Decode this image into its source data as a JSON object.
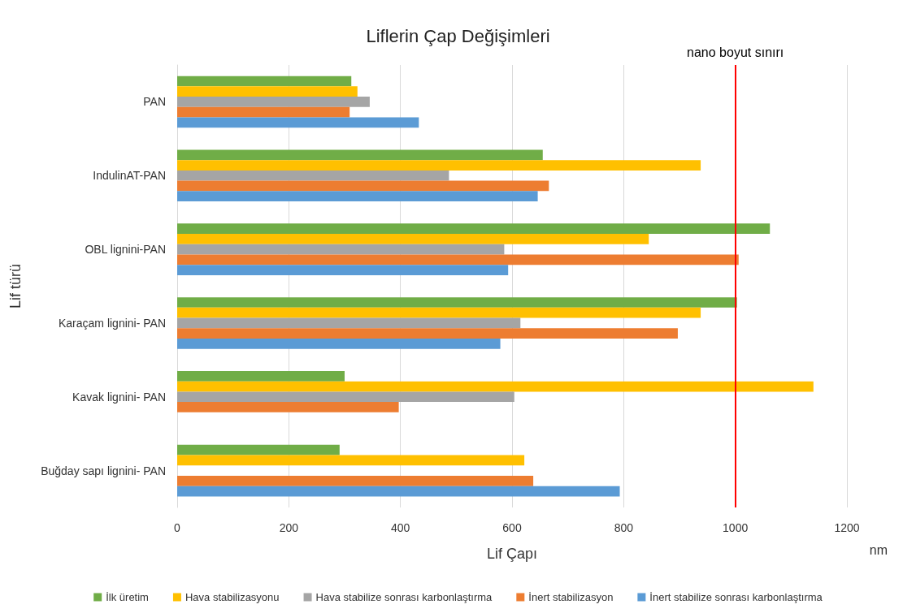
{
  "chart_data": {
    "type": "bar",
    "orientation": "horizontal",
    "title": "Liflerin Çap Değişimleri",
    "xlabel": "Lif Çapı",
    "ylabel": "Lif türü",
    "annotations": [
      "nm"
    ],
    "categories": [
      "PAN",
      "IndulinAT-PAN",
      "OBL lignini-PAN",
      "Karaçam lignini- PAN",
      "Kavak lignini- PAN",
      "Buğday sapı lignini- PAN"
    ],
    "series": [
      {
        "name": "İlk üretim",
        "color": "#70ad47",
        "values": [
          312,
          655,
          1062,
          1003,
          300,
          291
        ]
      },
      {
        "name": "Hava stabilizasyonu",
        "color": "#ffc000",
        "values": [
          323,
          938,
          845,
          938,
          1140,
          622
        ]
      },
      {
        "name": "Hava stabilize sonrası karbonlaştırma",
        "color": "#a5a5a5",
        "values": [
          345,
          487,
          586,
          615,
          604,
          null
        ]
      },
      {
        "name": "İnert stabilizasyon",
        "color": "#ed7d31",
        "values": [
          309,
          666,
          1006,
          897,
          397,
          638
        ]
      },
      {
        "name": "İnert stabilize sonrası karbonlaştırma",
        "color": "#5b9bd5",
        "values": [
          433,
          646,
          593,
          579,
          null,
          793
        ]
      }
    ],
    "xlim": [
      0,
      1200
    ],
    "xticks": [
      0,
      200,
      400,
      600,
      800,
      1000,
      1200
    ],
    "grid": "x",
    "legend": "bottom",
    "ref_lines": [
      {
        "axis": "x",
        "value": 1000,
        "label": "nano boyut sınırı",
        "color": "#ff0000"
      }
    ]
  }
}
